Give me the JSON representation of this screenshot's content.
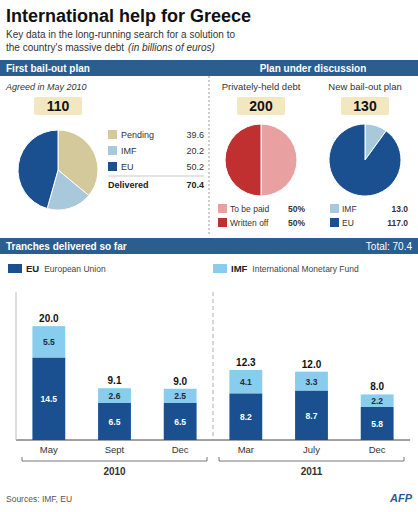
{
  "title": "International help for Greece",
  "subtitle": [
    "Key data in the long-running search for a solution to",
    "the country's massive debt",
    "(in billions of euros)"
  ],
  "sources": "Sources: IMF, EU",
  "credit": "AFP",
  "chart_data": [
    {
      "type": "pie",
      "title": "First bail-out plan",
      "subtitle": "Agreed in May 2010",
      "total": 110,
      "categories": [
        "Pending",
        "IMF",
        "EU"
      ],
      "values": [
        39.6,
        20.2,
        50.2
      ],
      "colors": [
        "#d4c99a",
        "#a8c8dc",
        "#1a5090"
      ],
      "data_labels": true,
      "annotations": [
        {
          "text": "Delivered",
          "value": 70.4
        }
      ]
    },
    {
      "type": "pie",
      "title": "Privately-held debt",
      "total": 200,
      "categories": [
        "To be paid",
        "Written off"
      ],
      "values": [
        50,
        50
      ],
      "value_labels": [
        "50%",
        "50%"
      ],
      "colors": [
        "#e8a0a0",
        "#c03030"
      ],
      "data_labels": true,
      "annotations": [
        "Plan under discussion"
      ]
    },
    {
      "type": "pie",
      "title": "New bail-out plan",
      "total": 130,
      "categories": [
        "IMF",
        "EU"
      ],
      "values": [
        13.0,
        117.0
      ],
      "value_labels": [
        "13.0",
        "117.0"
      ],
      "colors": [
        "#a8c8dc",
        "#1a5090"
      ],
      "data_labels": true
    },
    {
      "type": "bar",
      "title": "Tranches delivered so far",
      "annotations": [
        "Total: 70.4"
      ],
      "categories": [
        "May",
        "Sept",
        "Dec",
        "Mar",
        "July",
        "Dec"
      ],
      "groups": [
        {
          "label": "2010",
          "size": 3
        },
        {
          "label": "2011",
          "size": 3
        }
      ],
      "series": [
        {
          "name": "EU",
          "description": "European Union",
          "color": "#1a5090",
          "values": [
            14.5,
            6.5,
            6.5,
            8.2,
            8.7,
            5.8
          ]
        },
        {
          "name": "IMF",
          "description": "International Monetary Fund",
          "color": "#88ccee",
          "values": [
            5.5,
            2.6,
            2.5,
            4.1,
            3.3,
            2.2
          ]
        }
      ],
      "totals": [
        20.0,
        9.1,
        9.0,
        12.3,
        12.0,
        8.0
      ],
      "total_labels": [
        "20.0",
        "9.1",
        "9.0",
        "12.3",
        "12.0",
        "8.0"
      ],
      "stacked": true,
      "data_labels": true,
      "ylim": [
        0,
        26
      ],
      "tick_labels": "x",
      "grid": false,
      "legend": "top"
    }
  ]
}
